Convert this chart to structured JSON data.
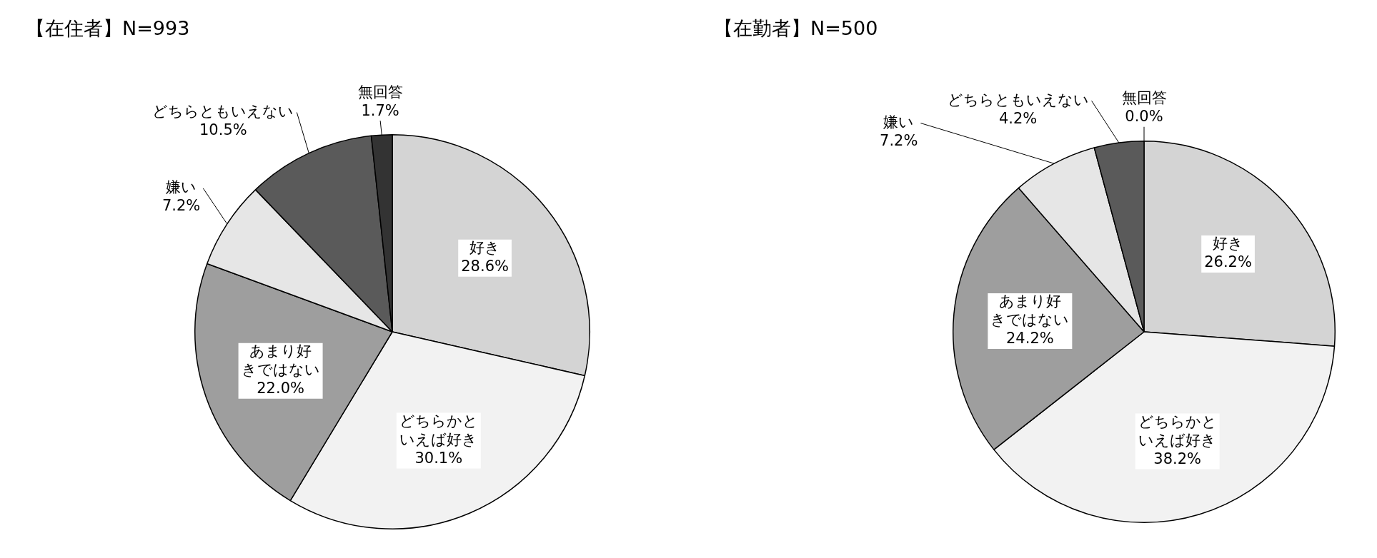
{
  "chart_data": [
    {
      "type": "pie",
      "title": "【在住者】N=993",
      "categories": [
        "好き",
        "どちらかといえば好き",
        "あまり好きではない",
        "嫌い",
        "どちらともいえない",
        "無回答"
      ],
      "values": [
        28.6,
        30.1,
        22.0,
        7.2,
        10.5,
        1.7
      ],
      "value_labels": [
        "28.6%",
        "30.1%",
        "22.0%",
        "7.2%",
        "10.5%",
        "1.7%"
      ],
      "colors": [
        "#d4d4d4",
        "#f2f2f2",
        "#9e9e9e",
        "#e6e6e6",
        "#5a5a5a",
        "#333333"
      ]
    },
    {
      "type": "pie",
      "title": "【在勤者】N=500",
      "categories": [
        "好き",
        "どちらかといえば好き",
        "あまり好きではない",
        "嫌い",
        "どちらともいえない",
        "無回答"
      ],
      "values": [
        26.2,
        38.2,
        24.2,
        7.2,
        4.2,
        0.0
      ],
      "value_labels": [
        "26.2%",
        "38.2%",
        "24.2%",
        "7.2%",
        "4.2%",
        "0.0%"
      ],
      "colors": [
        "#d4d4d4",
        "#f2f2f2",
        "#9e9e9e",
        "#e6e6e6",
        "#5a5a5a",
        "#333333"
      ]
    }
  ]
}
